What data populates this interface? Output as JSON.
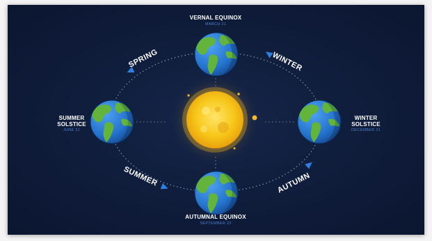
{
  "positions": {
    "top": {
      "title": "VERNAL EQUINOX",
      "date": "MARCH 21"
    },
    "left": {
      "title_line1": "SUMMER",
      "title_line2": "SOLSTICE",
      "date": "JUNE 21"
    },
    "right": {
      "title_line1": "WINTER",
      "title_line2": "SOLSTICE",
      "date": "DECEMBER 21"
    },
    "bottom": {
      "title": "AUTUMNAL EQUINOX",
      "date": "SEPTEMBER 23"
    }
  },
  "seasons": {
    "spring": "SPRING",
    "winter": "WINTER",
    "summer": "SUMMER",
    "autumn": "AUTUMN"
  },
  "icons": [
    "sun-icon",
    "earth-globe-icon",
    "direction-arrow-icon"
  ],
  "colors": {
    "background": "#0f1c3a",
    "sun_core": "#f7c81a",
    "sun_glow": "#f0a20a",
    "ocean": "#2a7fd8",
    "land": "#62b53a",
    "arrow": "#2f7ee0",
    "subtitle": "#4a7fd0"
  }
}
